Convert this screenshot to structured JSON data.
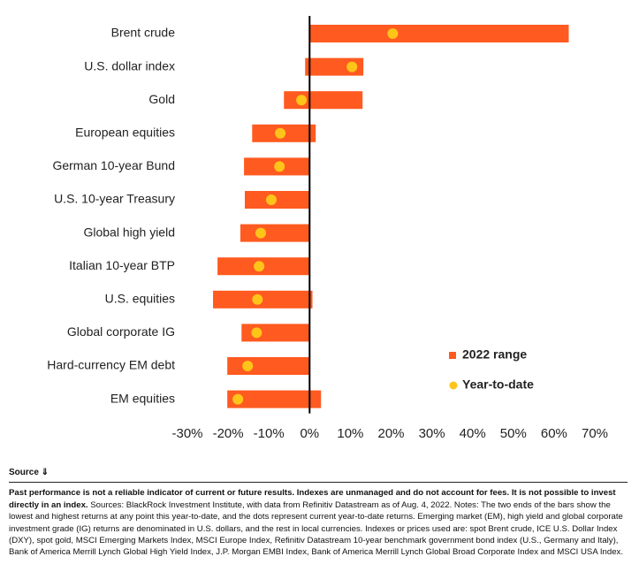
{
  "chart_data": {
    "type": "range",
    "categories": [
      "Brent crude",
      "U.S. dollar index",
      "Gold",
      "European equities",
      "German 10-year Bund",
      "U.S. 10-year Treasury",
      "Global high yield",
      "Italian 10-year BTP",
      "U.S. equities",
      "Global corporate IG",
      "Hard-currency EM debt",
      "EM equities"
    ],
    "series": [
      {
        "name": "2022 range",
        "color": "#ff5a1f",
        "low": [
          0,
          -1.1,
          -6.3,
          -14.1,
          -16.1,
          -15.9,
          -17,
          -22.6,
          -23.7,
          -16.7,
          -20.2,
          -20.2
        ],
        "high": [
          63.6,
          13.2,
          13,
          1.5,
          0,
          0,
          0,
          0,
          0.7,
          0,
          0,
          2.8
        ]
      },
      {
        "name": "Year-to-date",
        "color": "#ffc41a",
        "values": [
          20.4,
          10.4,
          -2,
          -7.2,
          -7.4,
          -9.4,
          -12,
          -12.4,
          -12.8,
          -13,
          -15.2,
          -17.6
        ]
      }
    ],
    "xlim": [
      -30,
      70
    ],
    "xticks": [
      {
        "value": -30,
        "label": "-30%"
      },
      {
        "value": -20,
        "label": "-20%"
      },
      {
        "value": -10,
        "label": "-10%"
      },
      {
        "value": 0,
        "label": "0%"
      },
      {
        "value": 10,
        "label": "10%"
      },
      {
        "value": 20,
        "label": "20%"
      },
      {
        "value": 30,
        "label": "30%"
      },
      {
        "value": 40,
        "label": "40%"
      },
      {
        "value": 50,
        "label": "50%"
      },
      {
        "value": 60,
        "label": "60%"
      },
      {
        "value": 70,
        "label": "70%"
      }
    ],
    "legend": "lower right"
  },
  "footer": {
    "source_label": "Source",
    "bold": "Past performance is not a reliable indicator of current or future results. Indexes are unmanaged and do not account for fees. It is not possible to invest directly in an index.",
    "text": "Sources: BlackRock Investment Institute, with data from Refinitiv Datastream as of Aug. 4, 2022. Notes: The two ends of the bars show the lowest and highest returns at any point this year-to-date, and the dots represent current year-to-date returns. Emerging market (EM), high yield and global corporate investment grade (IG) returns are denominated in U.S. dollars, and the rest in local currencies. Indexes or prices used are: spot Brent crude, ICE U.S. Dollar Index (DXY), spot gold, MSCI Emerging Markets Index, MSCI Europe Index, Refinitiv Datastream 10-year benchmark government bond index (U.S., Germany and Italy), Bank of America Merrill Lynch Global High Yield Index, J.P. Morgan EMBI Index, Bank of America Merrill Lynch Global Broad Corporate Index and MSCI USA Index."
  }
}
